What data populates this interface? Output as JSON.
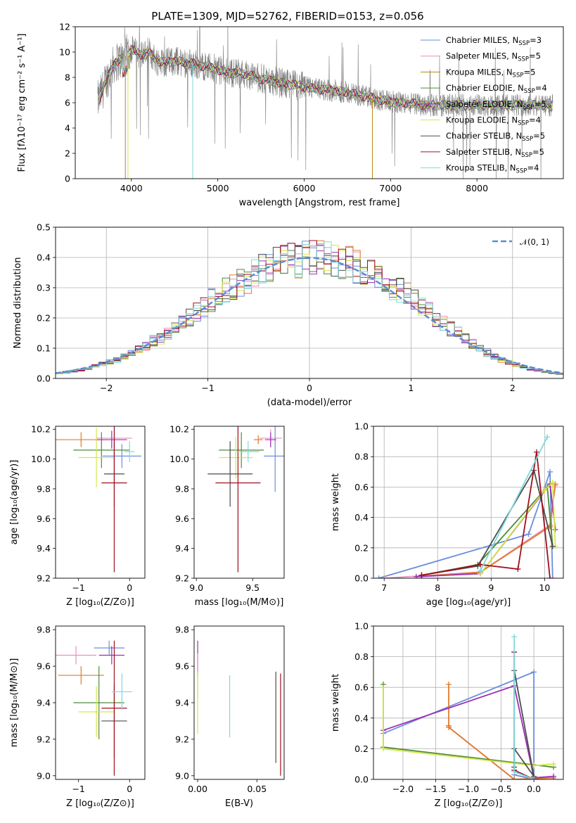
{
  "chart_data": [
    {
      "type": "line",
      "title": "PLATE=1309, MJD=52762, FIBERID=0153, z=0.056",
      "xlabel": "wavelength [Angstrom, rest frame]",
      "ylabel": "Flux [fλ10⁻¹⁷ erg cm⁻² s⁻¹ A⁻¹]",
      "xlim": [
        3350,
        9000
      ],
      "ylim": [
        0,
        12
      ],
      "xticks": [
        4000,
        5000,
        6000,
        7000,
        8000
      ],
      "yticks": [
        0,
        2,
        4,
        6,
        8,
        10,
        12
      ],
      "grid": false,
      "legend_position": "upper-right",
      "data_color": "#808080",
      "continuum_x": [
        3620,
        3700,
        3800,
        3900,
        4000,
        4100,
        4200,
        4300,
        4400,
        4500,
        4700,
        4900,
        5100,
        5300,
        5500,
        5700,
        5900,
        6100,
        6300,
        6500,
        6700,
        6900,
        7100,
        7300,
        7450
      ],
      "continuum_y": [
        6.2,
        7.6,
        9.1,
        9.5,
        10.2,
        9.8,
        10.0,
        9.3,
        9.2,
        9.3,
        9.1,
        8.8,
        8.4,
        8.3,
        7.9,
        7.6,
        7.4,
        7.1,
        7.0,
        6.8,
        6.5,
        6.2,
        6.0,
        5.9,
        5.8
      ],
      "series": [
        {
          "name": "Chabrier MILES, N_SSP=3",
          "color": "#6a8fdc"
        },
        {
          "name": "Salpeter MILES, N_SSP=5",
          "color": "#e98fc0"
        },
        {
          "name": "Kroupa MILES, N_SSP=5",
          "color": "#b8860b"
        },
        {
          "name": "Chabrier ELODIE, N_SSP=4",
          "color": "#4d8b3a"
        },
        {
          "name": "Salpeter ELODIE, N_SSP=5",
          "color": "#9b30b4"
        },
        {
          "name": "Kroupa ELODIE, N_SSP=4",
          "color": "#d6e64a"
        },
        {
          "name": "Chabrier STELIB, N_SSP=5",
          "color": "#4d4d4d"
        },
        {
          "name": "Salpeter STELIB, N_SSP=5",
          "color": "#a00f1c"
        },
        {
          "name": "Kroupa STELIB, N_SSP=4",
          "color": "#7fd8dc"
        }
      ],
      "legend_parts": {
        "models": [
          "Chabrier MILES, N",
          "Salpeter MILES, N",
          "Kroupa MILES, N",
          "Chabrier ELODIE, N",
          "Salpeter ELODIE, N",
          "Kroupa ELODIE, N",
          "Chabrier STELIB, N",
          "Salpeter STELIB, N",
          "Kroupa STELIB, N"
        ],
        "sub": "SSP",
        "values": [
          "=3",
          "=5",
          "=5",
          "=4",
          "=5",
          "=4",
          "=5",
          "=5",
          "=4"
        ]
      }
    },
    {
      "type": "step-histogram",
      "xlabel": "(data-model)/error",
      "ylabel": "Normed distribution",
      "xlim": [
        -2.5,
        2.5
      ],
      "ylim": [
        0,
        0.5
      ],
      "xticks": [
        -2,
        -1,
        0,
        1,
        2
      ],
      "yticks": [
        0.0,
        0.1,
        0.2,
        0.3,
        0.4,
        0.5
      ],
      "grid": true,
      "legend_position": "upper-right",
      "legend_entries": [
        "𝒩(0, 1)"
      ],
      "gaussian": {
        "mean": 0,
        "sigma": 1,
        "color": "#5b8bd6",
        "style": "dashed"
      },
      "bin_width": 0.1,
      "base_shape": [
        0.017,
        0.02,
        0.024,
        0.028,
        0.034,
        0.04,
        0.047,
        0.054,
        0.06,
        0.072,
        0.084,
        0.1,
        0.11,
        0.125,
        0.13,
        0.15,
        0.165,
        0.18,
        0.2,
        0.22,
        0.24,
        0.26,
        0.28,
        0.29,
        0.305,
        0.315,
        0.33,
        0.345,
        0.36,
        0.37,
        0.38,
        0.385,
        0.39,
        0.39,
        0.395,
        0.4,
        0.4,
        0.4,
        0.39,
        0.385,
        0.38,
        0.37,
        0.36,
        0.35,
        0.335,
        0.32,
        0.305,
        0.29,
        0.275,
        0.26,
        0.24,
        0.22,
        0.2,
        0.18,
        0.165,
        0.15,
        0.13,
        0.115,
        0.1,
        0.085,
        0.074,
        0.062,
        0.052,
        0.045,
        0.038,
        0.032,
        0.027,
        0.022,
        0.018,
        0.015
      ]
    },
    {
      "type": "scatter",
      "xlabel": "Z [log₁₀(Z/Z⊙)]",
      "ylabel": "age  [log₁₀(age/yr)]",
      "xlim": [
        -1.45,
        0.3
      ],
      "ylim": [
        9.2,
        10.22
      ],
      "xticks": [
        -1,
        0
      ],
      "xticklabels": [
        "−1",
        "0"
      ],
      "yticks": [
        9.2,
        9.4,
        9.6,
        9.8,
        10.0,
        10.2
      ],
      "points": [
        {
          "x": -0.15,
          "y": 10.02,
          "xerr": 0.38,
          "yerr": 0.08,
          "color": "#6a8fdc"
        },
        {
          "x": -0.3,
          "y": 10.14,
          "xerr": 0.35,
          "yerr": 0.06,
          "color": "#e98fc0"
        },
        {
          "x": -0.95,
          "y": 10.13,
          "xerr": 0.5,
          "yerr": 0.05,
          "color": "#e07b2b"
        },
        {
          "x": -0.55,
          "y": 10.06,
          "xerr": 0.55,
          "yerr": 0.12,
          "color": "#4d8b3a"
        },
        {
          "x": -0.35,
          "y": 10.13,
          "xerr": 0.3,
          "yerr": 0.06,
          "color": "#9b30b4"
        },
        {
          "x": -0.65,
          "y": 10.01,
          "xerr": 0.35,
          "yerr": 0.2,
          "color": "#d6e64a"
        },
        {
          "x": -0.3,
          "y": 9.9,
          "xerr": 0.2,
          "yerr": 0.22,
          "color": "#4d4d4d"
        },
        {
          "x": -0.3,
          "y": 9.84,
          "xerr": 0.25,
          "yerr": 0.6,
          "color": "#a00f1c"
        },
        {
          "x": 0.0,
          "y": 10.05,
          "xerr": 0.1,
          "yerr": 0.07,
          "color": "#7fd8dc"
        }
      ]
    },
    {
      "type": "scatter",
      "xlabel": "mass [log₁₀(M/M⊙)]",
      "ylabel": "",
      "xlim": [
        8.98,
        9.78
      ],
      "ylim": [
        9.2,
        10.22
      ],
      "xticks": [
        9.0,
        9.5
      ],
      "xticklabels": [
        "9.0",
        "9.5"
      ],
      "yticks": [
        9.2,
        9.4,
        9.6,
        9.8,
        10.0,
        10.2
      ],
      "points": [
        {
          "x": 9.7,
          "y": 10.02,
          "xerr": 0.1,
          "yerr": 0.24,
          "color": "#6a8fdc"
        },
        {
          "x": 9.66,
          "y": 10.14,
          "xerr": 0.1,
          "yerr": 0.06,
          "color": "#e98fc0"
        },
        {
          "x": 9.55,
          "y": 10.13,
          "xerr": 0.04,
          "yerr": 0.03,
          "color": "#e07b2b"
        },
        {
          "x": 9.4,
          "y": 10.06,
          "xerr": 0.2,
          "yerr": 0.12,
          "color": "#4d8b3a"
        },
        {
          "x": 9.66,
          "y": 10.13,
          "xerr": 0.05,
          "yerr": 0.05,
          "color": "#9b30b4"
        },
        {
          "x": 9.35,
          "y": 10.01,
          "xerr": 0.15,
          "yerr": 0.14,
          "color": "#d6e64a"
        },
        {
          "x": 9.3,
          "y": 9.9,
          "xerr": 0.2,
          "yerr": 0.22,
          "color": "#4d4d4d"
        },
        {
          "x": 9.37,
          "y": 9.84,
          "xerr": 0.2,
          "yerr": 0.6,
          "color": "#a00f1c"
        },
        {
          "x": 9.46,
          "y": 10.05,
          "xerr": 0.1,
          "yerr": 0.07,
          "color": "#7fd8dc"
        }
      ]
    },
    {
      "type": "line",
      "xlabel": "age  [log₁₀(age/yr)]",
      "ylabel": "mass weight",
      "xlim": [
        6.8,
        10.35
      ],
      "ylim": [
        0,
        1.0
      ],
      "xticks": [
        7,
        8,
        9,
        10
      ],
      "yticks": [
        0.0,
        0.2,
        0.4,
        0.6,
        0.8,
        1.0
      ],
      "grid": true,
      "series": [
        {
          "color": "#6a8fdc",
          "x": [
            6.9,
            9.7,
            10.1,
            10.15
          ],
          "y": [
            0.0,
            0.29,
            0.7,
            0.0
          ]
        },
        {
          "color": "#e98fc0",
          "x": [
            7.0,
            8.8,
            10.1,
            10.2
          ],
          "y": [
            0.0,
            0.04,
            0.35,
            0.61
          ]
        },
        {
          "color": "#e07b2b",
          "x": [
            7.6,
            8.8,
            10.1,
            10.2
          ],
          "y": [
            0.01,
            0.04,
            0.34,
            0.62
          ]
        },
        {
          "color": "#4d8b3a",
          "x": [
            7.7,
            8.75,
            10.05,
            10.15
          ],
          "y": [
            0.02,
            0.09,
            0.6,
            0.21
          ]
        },
        {
          "color": "#9b30b4",
          "x": [
            7.6,
            8.8,
            10.1,
            10.2
          ],
          "y": [
            0.01,
            0.03,
            0.62,
            0.32
          ]
        },
        {
          "color": "#d6e64a",
          "x": [
            8.8,
            10.0,
            10.15,
            10.2
          ],
          "y": [
            0.03,
            0.58,
            0.63,
            0.21
          ]
        },
        {
          "color": "#4d4d4d",
          "x": [
            7.7,
            8.75,
            9.8,
            10.15
          ],
          "y": [
            0.02,
            0.08,
            0.71,
            0.21
          ]
        },
        {
          "color": "#a00f1c",
          "x": [
            7.7,
            8.8,
            9.5,
            9.85,
            10.1
          ],
          "y": [
            0.02,
            0.09,
            0.06,
            0.83,
            0.0
          ]
        },
        {
          "color": "#7fd8dc",
          "x": [
            8.8,
            10.05
          ],
          "y": [
            0.05,
            0.93
          ]
        }
      ]
    },
    {
      "type": "scatter",
      "xlabel": "Z [log₁₀(Z/Z⊙)]",
      "ylabel": "mass [log₁₀(M/M⊙)]",
      "xlim": [
        -1.45,
        0.3
      ],
      "ylim": [
        8.98,
        9.82
      ],
      "xticks": [
        -1,
        0
      ],
      "xticklabels": [
        "−1",
        "0"
      ],
      "yticks": [
        9.0,
        9.2,
        9.4,
        9.6,
        9.8
      ],
      "points": [
        {
          "x": -0.4,
          "y": 9.7,
          "xerr": 0.3,
          "yerr": 0.04,
          "color": "#6a8fdc"
        },
        {
          "x": -1.05,
          "y": 9.66,
          "xerr": 0.4,
          "yerr": 0.05,
          "color": "#e98fc0"
        },
        {
          "x": -0.95,
          "y": 9.55,
          "xerr": 0.45,
          "yerr": 0.05,
          "color": "#e07b2b"
        },
        {
          "x": -0.6,
          "y": 9.4,
          "xerr": 0.5,
          "yerr": 0.2,
          "color": "#4d8b3a"
        },
        {
          "x": -0.35,
          "y": 9.66,
          "xerr": 0.25,
          "yerr": 0.05,
          "color": "#9b30b4"
        },
        {
          "x": -0.65,
          "y": 9.35,
          "xerr": 0.35,
          "yerr": 0.14,
          "color": "#d6e64a"
        },
        {
          "x": -0.3,
          "y": 9.3,
          "xerr": 0.25,
          "yerr": 0.2,
          "color": "#4d4d4d"
        },
        {
          "x": -0.3,
          "y": 9.37,
          "xerr": 0.25,
          "yerr": 0.37,
          "color": "#a00f1c"
        },
        {
          "x": -0.15,
          "y": 9.46,
          "xerr": 0.2,
          "yerr": 0.1,
          "color": "#7fd8dc"
        }
      ]
    },
    {
      "type": "scatter",
      "xlabel": "E(B-V)",
      "ylabel": "",
      "xlim": [
        -0.003,
        0.073
      ],
      "ylim": [
        8.98,
        9.82
      ],
      "xticks": [
        0.0,
        0.05
      ],
      "xticklabels": [
        "0.00",
        "0.05"
      ],
      "yticks": [
        9.0,
        9.2,
        9.4,
        9.6,
        9.8
      ],
      "points": [
        {
          "x": 0.0,
          "y": 9.64,
          "xerr": 0,
          "yerr": 0.1,
          "color": "#9b30b4"
        },
        {
          "x": 0.0,
          "y": 9.55,
          "xerr": 0,
          "yerr": 0.12,
          "color": "#e98fc0"
        },
        {
          "x": 0.0,
          "y": 9.4,
          "xerr": 0,
          "yerr": 0.17,
          "color": "#d6e64a"
        },
        {
          "x": 0.027,
          "y": 9.38,
          "xerr": 0,
          "yerr": 0.17,
          "color": "#7fd8dc"
        },
        {
          "x": 0.066,
          "y": 9.32,
          "xerr": 0,
          "yerr": 0.25,
          "color": "#4d4d4d"
        },
        {
          "x": 0.07,
          "y": 9.28,
          "xerr": 0,
          "yerr": 0.28,
          "color": "#a00f1c"
        }
      ]
    },
    {
      "type": "line",
      "xlabel": "Z [log₁₀(Z/Z⊙)]",
      "ylabel": "mass weight",
      "xlim": [
        -2.45,
        0.45
      ],
      "ylim": [
        0,
        1.0
      ],
      "xticks": [
        -2.0,
        -1.5,
        -1.0,
        -0.5,
        0.0
      ],
      "xticklabels": [
        "−2.0",
        "−1.5",
        "−1.0",
        "−0.5",
        "0.0"
      ],
      "yticks": [
        0.0,
        0.2,
        0.4,
        0.6,
        0.8,
        1.0
      ],
      "grid": true,
      "series": [
        {
          "color": "#6a8fdc",
          "x": [
            -2.3,
            0.0,
            0.0,
            -0.3
          ],
          "y": [
            0.3,
            0.7,
            0.0,
            0.03
          ]
        },
        {
          "color": "#e98fc0",
          "x": [
            -1.3,
            -0.3
          ],
          "y": [
            0.34,
            0.0
          ]
        },
        {
          "color": "#e07b2b",
          "x": [
            -1.3,
            -1.3,
            -1.3,
            -0.3,
            0.3
          ],
          "y": [
            0.62,
            0.35,
            0.34,
            0.0,
            0.01
          ]
        },
        {
          "color": "#4d8b3a",
          "x": [
            -2.3,
            -2.3,
            0.3
          ],
          "y": [
            0.62,
            0.21,
            0.08
          ]
        },
        {
          "color": "#9b30b4",
          "x": [
            -2.3,
            -0.3,
            0.0,
            0.3
          ],
          "y": [
            0.32,
            0.61,
            0.01,
            0.02
          ]
        },
        {
          "color": "#d6e64a",
          "x": [
            -2.3,
            -2.3,
            0.0,
            0.3
          ],
          "y": [
            0.6,
            0.2,
            0.09,
            0.1
          ]
        },
        {
          "color": "#4d4d4d",
          "x": [
            -0.3,
            0.0,
            -0.3,
            -0.3
          ],
          "y": [
            0.71,
            0.02,
            0.2,
            0.08
          ]
        },
        {
          "color": "#a00f1c",
          "x": [
            -0.3,
            -0.3,
            0.0
          ],
          "y": [
            0.83,
            0.06,
            0.0
          ]
        },
        {
          "color": "#7fd8dc",
          "x": [
            -0.3,
            -0.3,
            0.0
          ],
          "y": [
            0.93,
            0.05,
            0.0
          ]
        }
      ]
    }
  ]
}
